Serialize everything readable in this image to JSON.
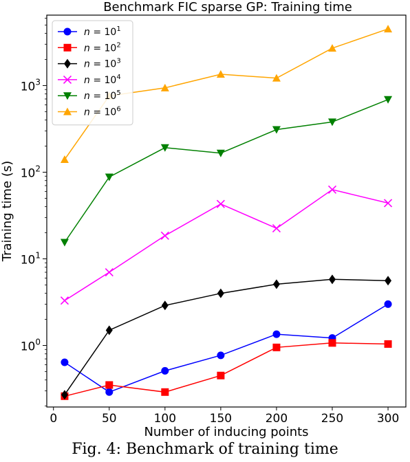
{
  "caption": "Fig. 4: Benchmark of training time",
  "chart_data": {
    "type": "line",
    "title": "Benchmark FIC sparse GP: Training time",
    "xlabel": "Number of inducing points",
    "ylabel": "Training time (s)",
    "x": [
      10,
      50,
      100,
      150,
      200,
      250,
      300
    ],
    "xlim": [
      -6,
      316
    ],
    "ylim": [
      0.195,
      6500
    ],
    "yscale": "log",
    "xticks": [
      0,
      50,
      100,
      150,
      200,
      250,
      300
    ],
    "yticks": [
      {
        "value": 1,
        "base": "10",
        "exp": "0"
      },
      {
        "value": 10,
        "base": "10",
        "exp": "1"
      },
      {
        "value": 100,
        "base": "10",
        "exp": "2"
      },
      {
        "value": 1000,
        "base": "10",
        "exp": "3"
      }
    ],
    "grid": false,
    "legend_position": "upper-left",
    "series": [
      {
        "name_prefix": "n = 10",
        "name_exp": "1",
        "color": "#0000ff",
        "marker": "circle",
        "values": [
          0.64,
          0.29,
          0.51,
          0.77,
          1.35,
          1.22,
          3.0
        ]
      },
      {
        "name_prefix": "n = 10",
        "name_exp": "2",
        "color": "#ff0000",
        "marker": "square",
        "values": [
          0.26,
          0.35,
          0.29,
          0.45,
          0.95,
          1.07,
          1.04
        ]
      },
      {
        "name_prefix": "n = 10",
        "name_exp": "3",
        "color": "#000000",
        "marker": "diamond",
        "values": [
          0.27,
          1.5,
          2.9,
          4.0,
          5.1,
          5.8,
          5.6
        ]
      },
      {
        "name_prefix": "n = 10",
        "name_exp": "4",
        "color": "#ff00ff",
        "marker": "x",
        "values": [
          3.3,
          7.0,
          18.5,
          43,
          22.5,
          63,
          44
        ]
      },
      {
        "name_prefix": "n = 10",
        "name_exp": "5",
        "color": "#008000",
        "marker": "triangle-down",
        "values": [
          15.5,
          88,
          192,
          166,
          310,
          380,
          690
        ]
      },
      {
        "name_prefix": "n = 10",
        "name_exp": "6",
        "color": "#ffa500",
        "marker": "triangle-up",
        "values": [
          140,
          760,
          940,
          1350,
          1220,
          2700,
          4500
        ]
      }
    ]
  }
}
